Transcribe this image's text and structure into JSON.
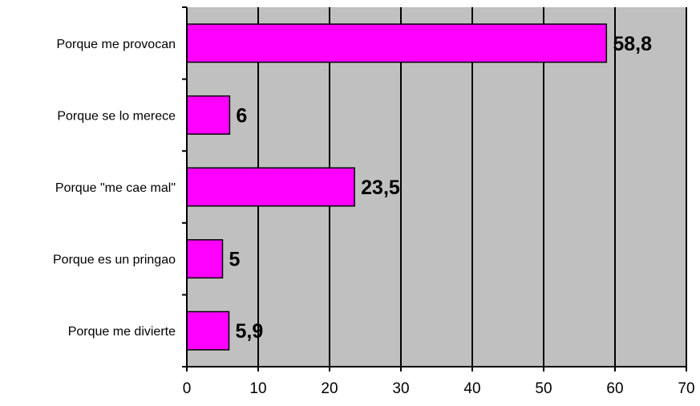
{
  "chart_data": {
    "type": "bar",
    "orientation": "horizontal",
    "categories": [
      "Porque me provocan",
      "Porque se lo merece",
      "Porque \"me cae mal\"",
      "Porque es un pringao",
      "Porque me divierte"
    ],
    "values": [
      58.8,
      6,
      23.5,
      5,
      5.9
    ],
    "value_labels": [
      "58,8",
      "6",
      "23,5",
      "5",
      "5,9"
    ],
    "xlim": [
      0,
      70
    ],
    "x_ticks": [
      0,
      10,
      20,
      30,
      40,
      50,
      60,
      70
    ],
    "grid": true,
    "legend": "none",
    "colors": {
      "bar_fill": "#FF00FF",
      "bar_stroke": "#000000",
      "plot_background": "#C0C0C0",
      "gridline": "#000000"
    }
  }
}
